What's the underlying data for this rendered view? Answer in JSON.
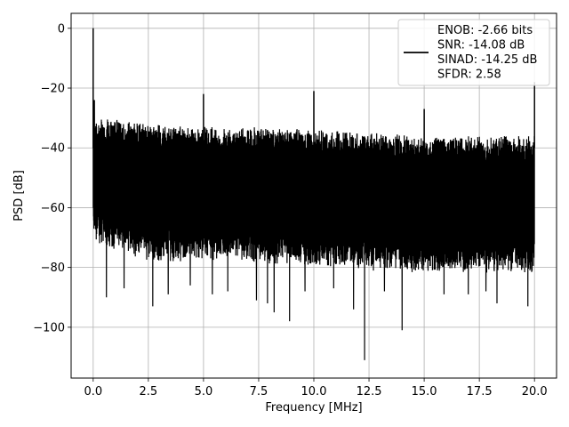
{
  "chart_data": {
    "type": "line",
    "title": "",
    "xlabel": "Frequency [MHz]",
    "ylabel": "PSD [dB]",
    "xlim": [
      -1.0,
      21.0
    ],
    "ylim": [
      -117,
      5
    ],
    "x_ticks": [
      0.0,
      2.5,
      5.0,
      7.5,
      10.0,
      12.5,
      15.0,
      17.5,
      20.0
    ],
    "x_tick_labels": [
      "0.0",
      "2.5",
      "5.0",
      "7.5",
      "10.0",
      "12.5",
      "15.0",
      "17.5",
      "20.0"
    ],
    "y_ticks": [
      0,
      -20,
      -40,
      -60,
      -80,
      -100
    ],
    "y_tick_labels": [
      "0",
      "−20",
      "−40",
      "−60",
      "−80",
      "−100"
    ],
    "grid": true,
    "line_color": "#000000",
    "legend_position": "top-right",
    "series": [
      {
        "name": "ENOB: -2.66 bits\nSNR: -14.08 dB\nSINAD: -14.25 dB\nSFDR: 2.58",
        "legend_lines": [
          "ENOB: -2.66 bits",
          "SNR: -14.08 dB",
          "SINAD: -14.25 dB",
          "SFDR: 2.58"
        ],
        "x_range": [
          0.0,
          20.0
        ],
        "upper_envelope": [
          [
            0.0,
            -31
          ],
          [
            0.5,
            -30
          ],
          [
            2.5,
            -32
          ],
          [
            5.0,
            -33
          ],
          [
            7.5,
            -33
          ],
          [
            10.0,
            -34
          ],
          [
            12.5,
            -35
          ],
          [
            15.0,
            -36
          ],
          [
            17.5,
            -36
          ],
          [
            20.0,
            -36
          ]
        ],
        "lower_envelope": [
          [
            0.0,
            -72
          ],
          [
            2.5,
            -78
          ],
          [
            5.0,
            -78
          ],
          [
            10.0,
            -80
          ],
          [
            15.0,
            -82
          ],
          [
            20.0,
            -82
          ]
        ],
        "peaks": [
          {
            "x": 0.0,
            "y": 0
          },
          {
            "x": 0.05,
            "y": -24
          },
          {
            "x": 5.0,
            "y": -22
          },
          {
            "x": 10.0,
            "y": -21
          },
          {
            "x": 15.0,
            "y": -27
          },
          {
            "x": 20.0,
            "y": -18
          }
        ],
        "deep_notches": [
          {
            "x": 0.6,
            "y": -90
          },
          {
            "x": 1.4,
            "y": -87
          },
          {
            "x": 2.7,
            "y": -93
          },
          {
            "x": 3.4,
            "y": -89
          },
          {
            "x": 4.4,
            "y": -86
          },
          {
            "x": 5.4,
            "y": -89
          },
          {
            "x": 6.1,
            "y": -88
          },
          {
            "x": 7.4,
            "y": -91
          },
          {
            "x": 7.9,
            "y": -92
          },
          {
            "x": 8.2,
            "y": -95
          },
          {
            "x": 8.9,
            "y": -98
          },
          {
            "x": 9.6,
            "y": -88
          },
          {
            "x": 10.9,
            "y": -87
          },
          {
            "x": 11.8,
            "y": -94
          },
          {
            "x": 12.3,
            "y": -111
          },
          {
            "x": 13.2,
            "y": -88
          },
          {
            "x": 14.0,
            "y": -101
          },
          {
            "x": 15.9,
            "y": -89
          },
          {
            "x": 17.0,
            "y": -89
          },
          {
            "x": 17.8,
            "y": -88
          },
          {
            "x": 18.3,
            "y": -92
          },
          {
            "x": 19.7,
            "y": -93
          }
        ]
      }
    ]
  }
}
